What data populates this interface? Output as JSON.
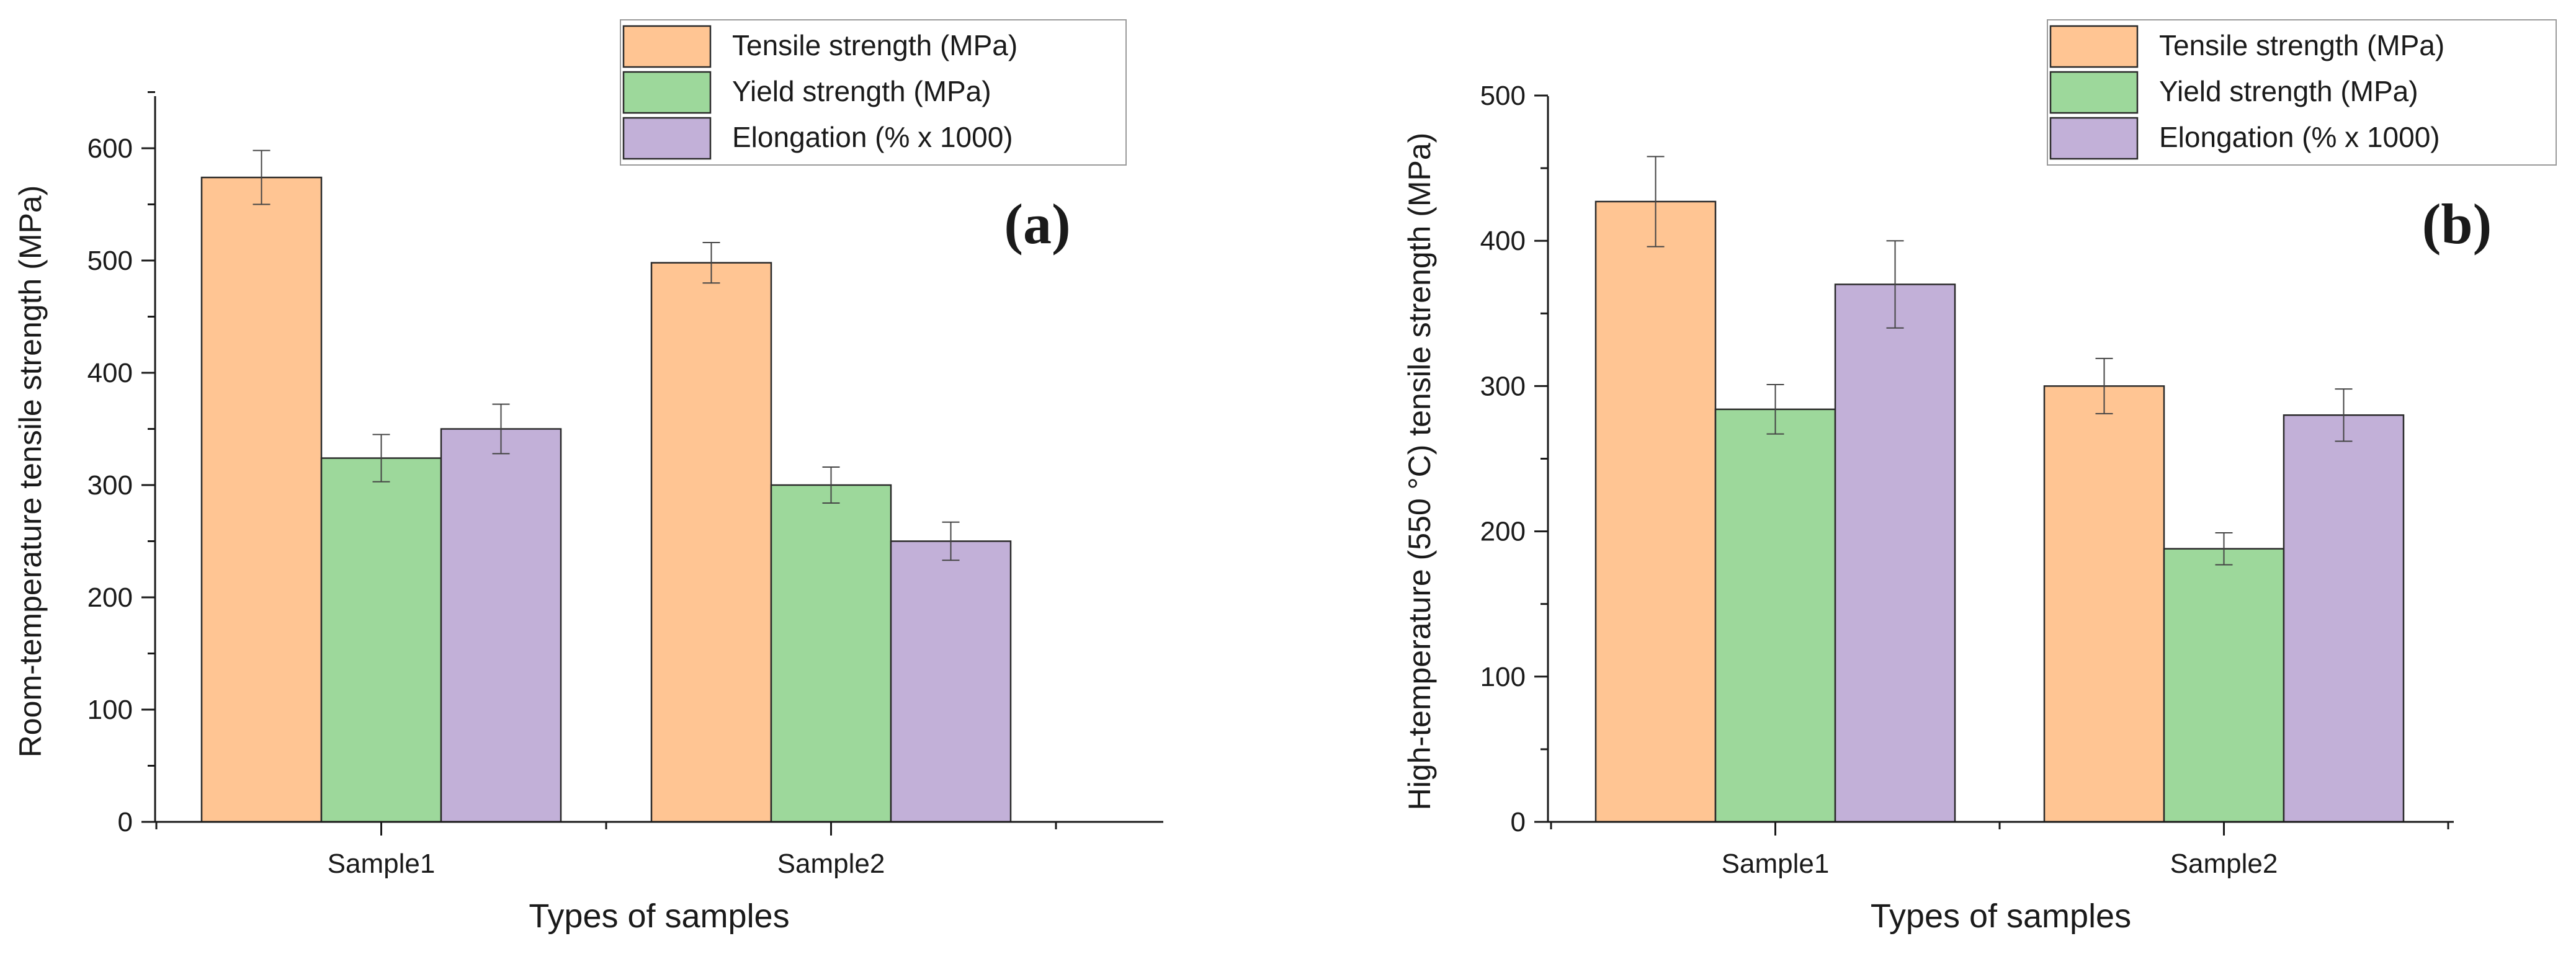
{
  "chart_data": [
    {
      "type": "bar",
      "panel": "(a)",
      "title": "",
      "xlabel": "Types of samples",
      "ylabel": "Room-temperature tensile strength (MPa)",
      "categories": [
        "Sample1",
        "Sample2"
      ],
      "ylim": [
        0,
        650
      ],
      "yticks": [
        0,
        100,
        200,
        300,
        400,
        500,
        600
      ],
      "grid": false,
      "legend_position": "top-right",
      "series": [
        {
          "name": "Tensile strength (MPa)",
          "color": "#FFC593",
          "values": [
            574,
            498
          ],
          "errors": [
            24,
            18
          ]
        },
        {
          "name": "Yield strength (MPa)",
          "color": "#9DD89B",
          "values": [
            324,
            300
          ],
          "errors": [
            21,
            16
          ]
        },
        {
          "name": "Elongation (% x 1000)",
          "color": "#C2B0D8",
          "values": [
            350,
            250
          ],
          "errors": [
            22,
            17
          ]
        }
      ]
    },
    {
      "type": "bar",
      "panel": "(b)",
      "title": "",
      "xlabel": "Types of samples",
      "ylabel": "High-temperature (550 °C) tensile strength (MPa)",
      "categories": [
        "Sample1",
        "Sample2"
      ],
      "ylim": [
        0,
        500
      ],
      "yticks": [
        0,
        100,
        200,
        300,
        400,
        500
      ],
      "grid": false,
      "legend_position": "top-right",
      "series": [
        {
          "name": "Tensile strength (MPa)",
          "color": "#FFC593",
          "values": [
            427,
            300
          ],
          "errors": [
            31,
            19
          ]
        },
        {
          "name": "Yield strength (MPa)",
          "color": "#9DD89B",
          "values": [
            284,
            188
          ],
          "errors": [
            17,
            11
          ]
        },
        {
          "name": "Elongation (% x 1000)",
          "color": "#C2B0D8",
          "values": [
            370,
            280
          ],
          "errors": [
            30,
            18
          ]
        }
      ]
    }
  ]
}
